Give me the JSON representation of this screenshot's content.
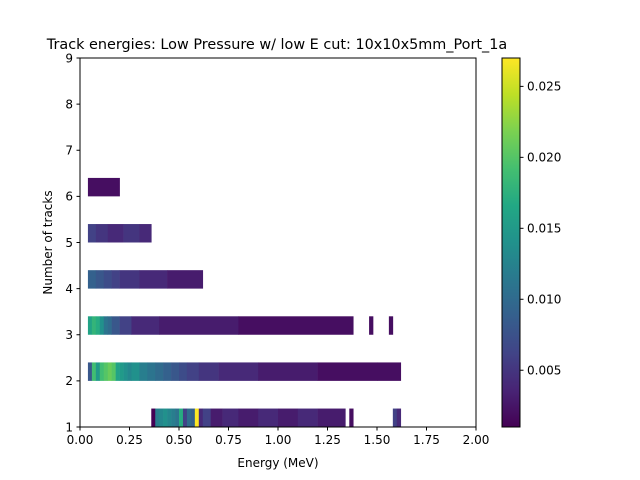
{
  "chart_data": {
    "type": "heatmap",
    "title": "Track energies: Low Pressure w/ low E cut: 10x10x5mm_Port_1a",
    "xlabel": "Energy (MeV)",
    "ylabel": "Number of tracks",
    "xlim": [
      0.0,
      2.0
    ],
    "ylim": [
      1,
      9
    ],
    "xticks": [
      "0.00",
      "0.25",
      "0.50",
      "0.75",
      "1.00",
      "1.25",
      "1.50",
      "1.75",
      "2.00"
    ],
    "yticks": [
      "1",
      "2",
      "3",
      "4",
      "5",
      "6",
      "7",
      "8",
      "9"
    ],
    "colorbar": {
      "colormap": "viridis",
      "min": 0.001,
      "max": 0.027,
      "ticks": [
        "0.005",
        "0.010",
        "0.015",
        "0.020",
        "0.025"
      ]
    },
    "bin_width": 0.02,
    "rows": [
      {
        "tracks": 1,
        "segments": [
          {
            "x0": 0.36,
            "x1": 0.38,
            "v": 0.001
          },
          {
            "x0": 0.38,
            "x1": 0.4,
            "v": 0.012
          },
          {
            "x0": 0.4,
            "x1": 0.42,
            "v": 0.013
          },
          {
            "x0": 0.42,
            "x1": 0.44,
            "v": 0.014
          },
          {
            "x0": 0.44,
            "x1": 0.46,
            "v": 0.013
          },
          {
            "x0": 0.46,
            "x1": 0.48,
            "v": 0.012
          },
          {
            "x0": 0.48,
            "x1": 0.5,
            "v": 0.011
          },
          {
            "x0": 0.5,
            "x1": 0.52,
            "v": 0.017
          },
          {
            "x0": 0.52,
            "x1": 0.54,
            "v": 0.006
          },
          {
            "x0": 0.54,
            "x1": 0.56,
            "v": 0.01
          },
          {
            "x0": 0.56,
            "x1": 0.58,
            "v": 0.009
          },
          {
            "x0": 0.58,
            "x1": 0.6,
            "v": 0.027
          },
          {
            "x0": 0.6,
            "x1": 0.62,
            "v": 0.004
          },
          {
            "x0": 0.62,
            "x1": 0.66,
            "v": 0.006
          },
          {
            "x0": 0.66,
            "x1": 0.72,
            "v": 0.003
          },
          {
            "x0": 0.72,
            "x1": 0.8,
            "v": 0.004
          },
          {
            "x0": 0.8,
            "x1": 0.9,
            "v": 0.003
          },
          {
            "x0": 0.9,
            "x1": 1.0,
            "v": 0.004
          },
          {
            "x0": 1.0,
            "x1": 1.1,
            "v": 0.003
          },
          {
            "x0": 1.1,
            "x1": 1.2,
            "v": 0.004
          },
          {
            "x0": 1.2,
            "x1": 1.34,
            "v": 0.003
          },
          {
            "x0": 1.36,
            "x1": 1.38,
            "v": 0.002
          },
          {
            "x0": 1.58,
            "x1": 1.6,
            "v": 0.006
          },
          {
            "x0": 1.6,
            "x1": 1.62,
            "v": 0.004
          }
        ]
      },
      {
        "tracks": 2,
        "segments": [
          {
            "x0": 0.04,
            "x1": 0.06,
            "v": 0.008
          },
          {
            "x0": 0.06,
            "x1": 0.08,
            "v": 0.019
          },
          {
            "x0": 0.08,
            "x1": 0.1,
            "v": 0.015
          },
          {
            "x0": 0.1,
            "x1": 0.12,
            "v": 0.019
          },
          {
            "x0": 0.12,
            "x1": 0.14,
            "v": 0.02
          },
          {
            "x0": 0.14,
            "x1": 0.16,
            "v": 0.021
          },
          {
            "x0": 0.16,
            "x1": 0.18,
            "v": 0.02
          },
          {
            "x0": 0.18,
            "x1": 0.2,
            "v": 0.016
          },
          {
            "x0": 0.2,
            "x1": 0.22,
            "v": 0.015
          },
          {
            "x0": 0.22,
            "x1": 0.24,
            "v": 0.014
          },
          {
            "x0": 0.24,
            "x1": 0.26,
            "v": 0.013
          },
          {
            "x0": 0.26,
            "x1": 0.3,
            "v": 0.014
          },
          {
            "x0": 0.3,
            "x1": 0.34,
            "v": 0.012
          },
          {
            "x0": 0.34,
            "x1": 0.38,
            "v": 0.011
          },
          {
            "x0": 0.38,
            "x1": 0.42,
            "v": 0.01
          },
          {
            "x0": 0.42,
            "x1": 0.46,
            "v": 0.009
          },
          {
            "x0": 0.46,
            "x1": 0.5,
            "v": 0.008
          },
          {
            "x0": 0.5,
            "x1": 0.54,
            "v": 0.007
          },
          {
            "x0": 0.54,
            "x1": 0.6,
            "v": 0.006
          },
          {
            "x0": 0.6,
            "x1": 0.7,
            "v": 0.005
          },
          {
            "x0": 0.7,
            "x1": 0.9,
            "v": 0.004
          },
          {
            "x0": 0.9,
            "x1": 1.2,
            "v": 0.003
          },
          {
            "x0": 1.2,
            "x1": 1.5,
            "v": 0.002
          },
          {
            "x0": 1.5,
            "x1": 1.62,
            "v": 0.002
          }
        ]
      },
      {
        "tracks": 3,
        "segments": [
          {
            "x0": 0.04,
            "x1": 0.06,
            "v": 0.016
          },
          {
            "x0": 0.06,
            "x1": 0.08,
            "v": 0.018
          },
          {
            "x0": 0.08,
            "x1": 0.1,
            "v": 0.017
          },
          {
            "x0": 0.1,
            "x1": 0.12,
            "v": 0.014
          },
          {
            "x0": 0.12,
            "x1": 0.14,
            "v": 0.011
          },
          {
            "x0": 0.14,
            "x1": 0.16,
            "v": 0.01
          },
          {
            "x0": 0.16,
            "x1": 0.2,
            "v": 0.008
          },
          {
            "x0": 0.2,
            "x1": 0.26,
            "v": 0.006
          },
          {
            "x0": 0.26,
            "x1": 0.4,
            "v": 0.004
          },
          {
            "x0": 0.4,
            "x1": 0.8,
            "v": 0.003
          },
          {
            "x0": 0.8,
            "x1": 1.38,
            "v": 0.002
          },
          {
            "x0": 1.46,
            "x1": 1.48,
            "v": 0.002
          },
          {
            "x0": 1.56,
            "x1": 1.58,
            "v": 0.002
          }
        ]
      },
      {
        "tracks": 4,
        "segments": [
          {
            "x0": 0.04,
            "x1": 0.08,
            "v": 0.009
          },
          {
            "x0": 0.08,
            "x1": 0.12,
            "v": 0.008
          },
          {
            "x0": 0.12,
            "x1": 0.16,
            "v": 0.007
          },
          {
            "x0": 0.16,
            "x1": 0.2,
            "v": 0.006
          },
          {
            "x0": 0.2,
            "x1": 0.3,
            "v": 0.005
          },
          {
            "x0": 0.3,
            "x1": 0.44,
            "v": 0.004
          },
          {
            "x0": 0.44,
            "x1": 0.62,
            "v": 0.003
          }
        ]
      },
      {
        "tracks": 5,
        "segments": [
          {
            "x0": 0.04,
            "x1": 0.08,
            "v": 0.006
          },
          {
            "x0": 0.08,
            "x1": 0.14,
            "v": 0.005
          },
          {
            "x0": 0.14,
            "x1": 0.22,
            "v": 0.004
          },
          {
            "x0": 0.22,
            "x1": 0.3,
            "v": 0.005
          },
          {
            "x0": 0.3,
            "x1": 0.36,
            "v": 0.004
          }
        ]
      },
      {
        "tracks": 6,
        "segments": [
          {
            "x0": 0.04,
            "x1": 0.2,
            "v": 0.002
          }
        ]
      }
    ]
  }
}
